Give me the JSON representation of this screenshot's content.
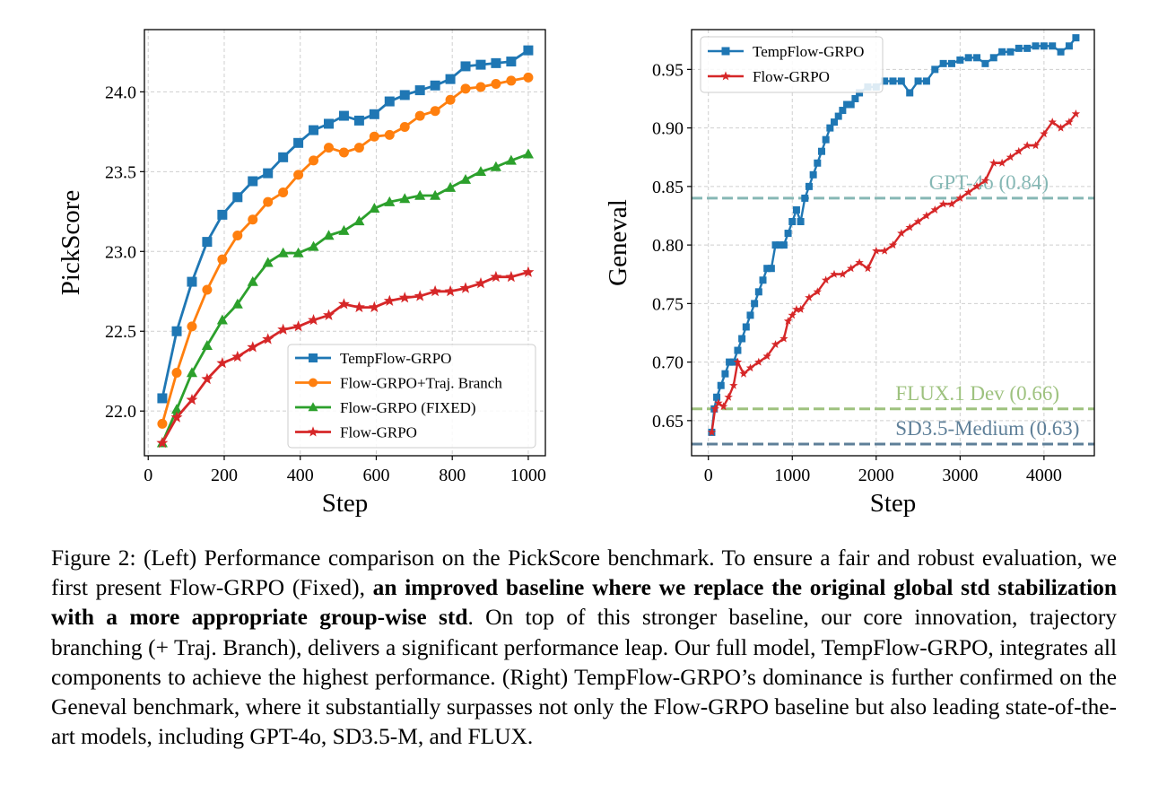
{
  "chart_data": [
    {
      "type": "line",
      "xlabel": "Step",
      "ylabel": "PickScore",
      "xlim": [
        -10,
        1045
      ],
      "ylim": [
        21.72,
        24.39
      ],
      "xticks": [
        0,
        200,
        400,
        600,
        800,
        1000
      ],
      "yticks": [
        22.0,
        22.5,
        23.0,
        23.5,
        24.0
      ],
      "ytick_labels": [
        "22.0",
        "22.5",
        "23.0",
        "23.5",
        "24.0"
      ],
      "grid": true,
      "legend_position": "lower-right",
      "x": [
        37,
        75,
        115,
        155,
        195,
        235,
        275,
        315,
        355,
        395,
        435,
        475,
        515,
        555,
        595,
        635,
        675,
        715,
        755,
        795,
        835,
        875,
        915,
        955,
        1000
      ],
      "series": [
        {
          "name": "TempFlow-GRPO",
          "color": "#1f77b4",
          "marker": "square",
          "values": [
            22.08,
            22.5,
            22.81,
            23.06,
            23.23,
            23.34,
            23.44,
            23.49,
            23.59,
            23.68,
            23.76,
            23.8,
            23.85,
            23.82,
            23.86,
            23.94,
            23.98,
            24.01,
            24.04,
            24.08,
            24.16,
            24.17,
            24.18,
            24.19,
            24.26
          ]
        },
        {
          "name": "Flow-GRPO+Traj. Branch",
          "color": "#ff7f0e",
          "marker": "circle",
          "values": [
            21.92,
            22.24,
            22.53,
            22.76,
            22.95,
            23.1,
            23.2,
            23.31,
            23.37,
            23.48,
            23.57,
            23.65,
            23.62,
            23.65,
            23.72,
            23.73,
            23.78,
            23.85,
            23.88,
            23.95,
            24.02,
            24.03,
            24.05,
            24.07,
            24.09
          ]
        },
        {
          "name": "Flow-GRPO (FIXED)",
          "color": "#2ca02c",
          "marker": "triangle",
          "values": [
            21.8,
            22.01,
            22.24,
            22.41,
            22.57,
            22.67,
            22.81,
            22.93,
            22.99,
            22.99,
            23.03,
            23.1,
            23.13,
            23.19,
            23.27,
            23.31,
            23.33,
            23.35,
            23.35,
            23.4,
            23.45,
            23.5,
            23.53,
            23.57,
            23.61
          ]
        },
        {
          "name": "Flow-GRPO",
          "color": "#d62728",
          "marker": "star",
          "values": [
            21.8,
            21.96,
            22.07,
            22.2,
            22.3,
            22.34,
            22.4,
            22.45,
            22.51,
            22.53,
            22.57,
            22.6,
            22.67,
            22.65,
            22.65,
            22.69,
            22.71,
            22.72,
            22.75,
            22.75,
            22.77,
            22.8,
            22.84,
            22.84,
            22.87
          ]
        }
      ]
    },
    {
      "type": "line",
      "xlabel": "Step",
      "ylabel": "Geneval",
      "xlim": [
        -200,
        4600
      ],
      "ylim": [
        0.62,
        0.984
      ],
      "xticks": [
        0,
        1000,
        2000,
        3000,
        4000
      ],
      "yticks": [
        0.65,
        0.7,
        0.75,
        0.8,
        0.85,
        0.9,
        0.95
      ],
      "ytick_labels": [
        "0.65",
        "0.70",
        "0.75",
        "0.80",
        "0.85",
        "0.90",
        "0.95"
      ],
      "grid": true,
      "legend_position": "top-left",
      "reference_lines": [
        {
          "label": "GPT-4o (0.84)",
          "value": 0.84,
          "color": "#86b8b5",
          "label_x": 2630
        },
        {
          "label": "FLUX.1 Dev (0.66)",
          "value": 0.66,
          "color": "#9ec27f",
          "label_x": 2230
        },
        {
          "label": "SD3.5-Medium (0.63)",
          "value": 0.63,
          "color": "#5e7f98",
          "label_x": 2230
        }
      ],
      "series": [
        {
          "name": "TempFlow-GRPO",
          "color": "#1f77b4",
          "marker": "square",
          "points": [
            [
              40,
              0.64
            ],
            [
              70,
              0.66
            ],
            [
              100,
              0.67
            ],
            [
              150,
              0.68
            ],
            [
              200,
              0.69
            ],
            [
              250,
              0.7
            ],
            [
              300,
              0.7
            ],
            [
              350,
              0.71
            ],
            [
              400,
              0.72
            ],
            [
              450,
              0.73
            ],
            [
              500,
              0.74
            ],
            [
              550,
              0.75
            ],
            [
              600,
              0.76
            ],
            [
              650,
              0.77
            ],
            [
              700,
              0.78
            ],
            [
              750,
              0.78
            ],
            [
              800,
              0.8
            ],
            [
              850,
              0.8
            ],
            [
              900,
              0.8
            ],
            [
              950,
              0.81
            ],
            [
              1000,
              0.82
            ],
            [
              1050,
              0.83
            ],
            [
              1100,
              0.82
            ],
            [
              1150,
              0.84
            ],
            [
              1200,
              0.85
            ],
            [
              1250,
              0.86
            ],
            [
              1300,
              0.87
            ],
            [
              1350,
              0.88
            ],
            [
              1400,
              0.89
            ],
            [
              1450,
              0.9
            ],
            [
              1500,
              0.905
            ],
            [
              1550,
              0.91
            ],
            [
              1600,
              0.915
            ],
            [
              1650,
              0.92
            ],
            [
              1700,
              0.92
            ],
            [
              1750,
              0.925
            ],
            [
              1800,
              0.93
            ],
            [
              1900,
              0.935
            ],
            [
              2000,
              0.935
            ],
            [
              2100,
              0.94
            ],
            [
              2200,
              0.94
            ],
            [
              2300,
              0.94
            ],
            [
              2400,
              0.93
            ],
            [
              2500,
              0.94
            ],
            [
              2600,
              0.94
            ],
            [
              2700,
              0.95
            ],
            [
              2800,
              0.955
            ],
            [
              2900,
              0.955
            ],
            [
              3000,
              0.958
            ],
            [
              3100,
              0.96
            ],
            [
              3200,
              0.96
            ],
            [
              3300,
              0.955
            ],
            [
              3400,
              0.96
            ],
            [
              3500,
              0.965
            ],
            [
              3600,
              0.965
            ],
            [
              3700,
              0.968
            ],
            [
              3800,
              0.968
            ],
            [
              3900,
              0.97
            ],
            [
              4000,
              0.97
            ],
            [
              4100,
              0.97
            ],
            [
              4200,
              0.965
            ],
            [
              4300,
              0.97
            ],
            [
              4380,
              0.977
            ]
          ]
        },
        {
          "name": "Flow-GRPO",
          "color": "#d62728",
          "marker": "star",
          "points": [
            [
              40,
              0.64
            ],
            [
              80,
              0.66
            ],
            [
              120,
              0.665
            ],
            [
              180,
              0.662
            ],
            [
              240,
              0.67
            ],
            [
              300,
              0.68
            ],
            [
              350,
              0.7
            ],
            [
              420,
              0.69
            ],
            [
              500,
              0.695
            ],
            [
              600,
              0.7
            ],
            [
              700,
              0.705
            ],
            [
              800,
              0.715
            ],
            [
              900,
              0.72
            ],
            [
              950,
              0.735
            ],
            [
              1000,
              0.74
            ],
            [
              1050,
              0.745
            ],
            [
              1100,
              0.745
            ],
            [
              1200,
              0.755
            ],
            [
              1300,
              0.76
            ],
            [
              1400,
              0.77
            ],
            [
              1500,
              0.775
            ],
            [
              1600,
              0.775
            ],
            [
              1700,
              0.78
            ],
            [
              1800,
              0.785
            ],
            [
              1900,
              0.78
            ],
            [
              2000,
              0.795
            ],
            [
              2100,
              0.795
            ],
            [
              2200,
              0.8
            ],
            [
              2300,
              0.81
            ],
            [
              2400,
              0.815
            ],
            [
              2500,
              0.82
            ],
            [
              2600,
              0.825
            ],
            [
              2700,
              0.83
            ],
            [
              2800,
              0.835
            ],
            [
              2900,
              0.835
            ],
            [
              3000,
              0.84
            ],
            [
              3100,
              0.845
            ],
            [
              3200,
              0.85
            ],
            [
              3300,
              0.855
            ],
            [
              3400,
              0.87
            ],
            [
              3500,
              0.87
            ],
            [
              3600,
              0.875
            ],
            [
              3700,
              0.88
            ],
            [
              3800,
              0.885
            ],
            [
              3900,
              0.885
            ],
            [
              4000,
              0.895
            ],
            [
              4100,
              0.905
            ],
            [
              4200,
              0.9
            ],
            [
              4300,
              0.905
            ],
            [
              4380,
              0.912
            ]
          ]
        }
      ]
    }
  ],
  "caption": {
    "part1": "Figure 2: (Left) Performance comparison on the PickScore benchmark. To ensure a fair and robust evaluation, we first present Flow-GRPO (Fixed), ",
    "bold": "an improved baseline where we replace the original global std stabilization with a more appropriate group-wise std",
    "part2": ". On top of this stronger baseline, our core innovation, trajectory branching (+ Traj. Branch), delivers a significant performance leap. Our full model, TempFlow-GRPO, integrates all components to achieve the highest performance. (Right) TempFlow-GRPO’s dominance is further confirmed on the Geneval benchmark, where it substantially surpasses not only the Flow-GRPO baseline but also leading state-of-the-art models, including GPT-4o, SD3.5-M, and FLUX."
  }
}
